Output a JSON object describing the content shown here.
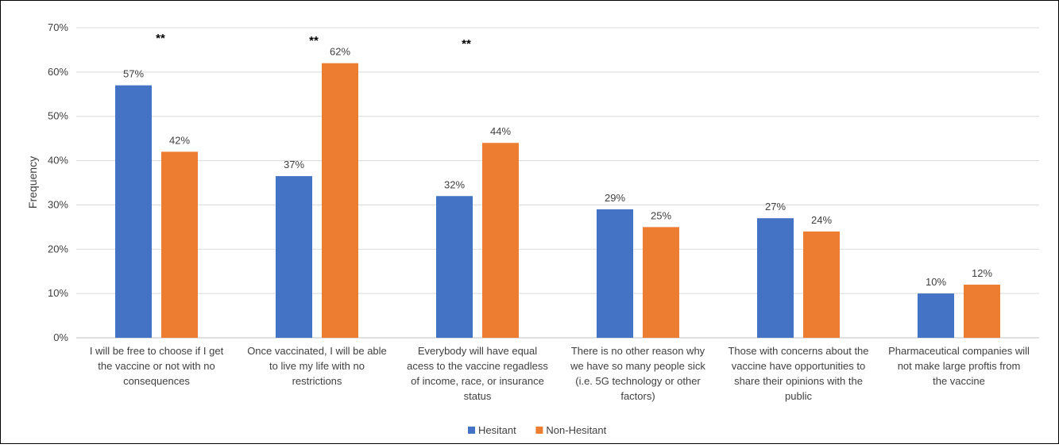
{
  "chart_data": {
    "type": "bar",
    "ylabel": "Frequency",
    "ylim": [
      0,
      70
    ],
    "y_ticks": [
      "0%",
      "10%",
      "20%",
      "30%",
      "40%",
      "50%",
      "60%",
      "70%"
    ],
    "categories": [
      [
        "I will be free to choose if I get",
        "the vaccine or not with no",
        "consequences"
      ],
      [
        "Once vaccinated, I will be able",
        "to live my life with no",
        "restrictions"
      ],
      [
        "Everybody will have equal",
        "acess to the vaccine regadless",
        "of income, race, or insurance",
        "status"
      ],
      [
        "There is no other reason why",
        "we have so many people sick",
        "(i.e. 5G technology or other",
        "factors)"
      ],
      [
        "Those with concerns about the",
        "vaccine have opportunities to",
        "share their opinions with the",
        "public"
      ],
      [
        "Pharmaceutical companies will",
        "not make large proftis from",
        "the vaccine"
      ]
    ],
    "series": [
      {
        "name": "Hesitant",
        "color": "#4472C4",
        "values": [
          57,
          36.5,
          32,
          29,
          27,
          10
        ],
        "labels": [
          "57%",
          "37%",
          "32%",
          "29%",
          "27%",
          "10%"
        ]
      },
      {
        "name": "Non-Hesitant",
        "color": "#ED7D31",
        "values": [
          42,
          62,
          44,
          25,
          24,
          12
        ],
        "labels": [
          "42%",
          "62%",
          "44%",
          "25%",
          "24%",
          "12%"
        ]
      }
    ],
    "significance": [
      "**",
      "**",
      "**",
      "",
      "",
      ""
    ],
    "grid": true,
    "legend": "bottom"
  }
}
